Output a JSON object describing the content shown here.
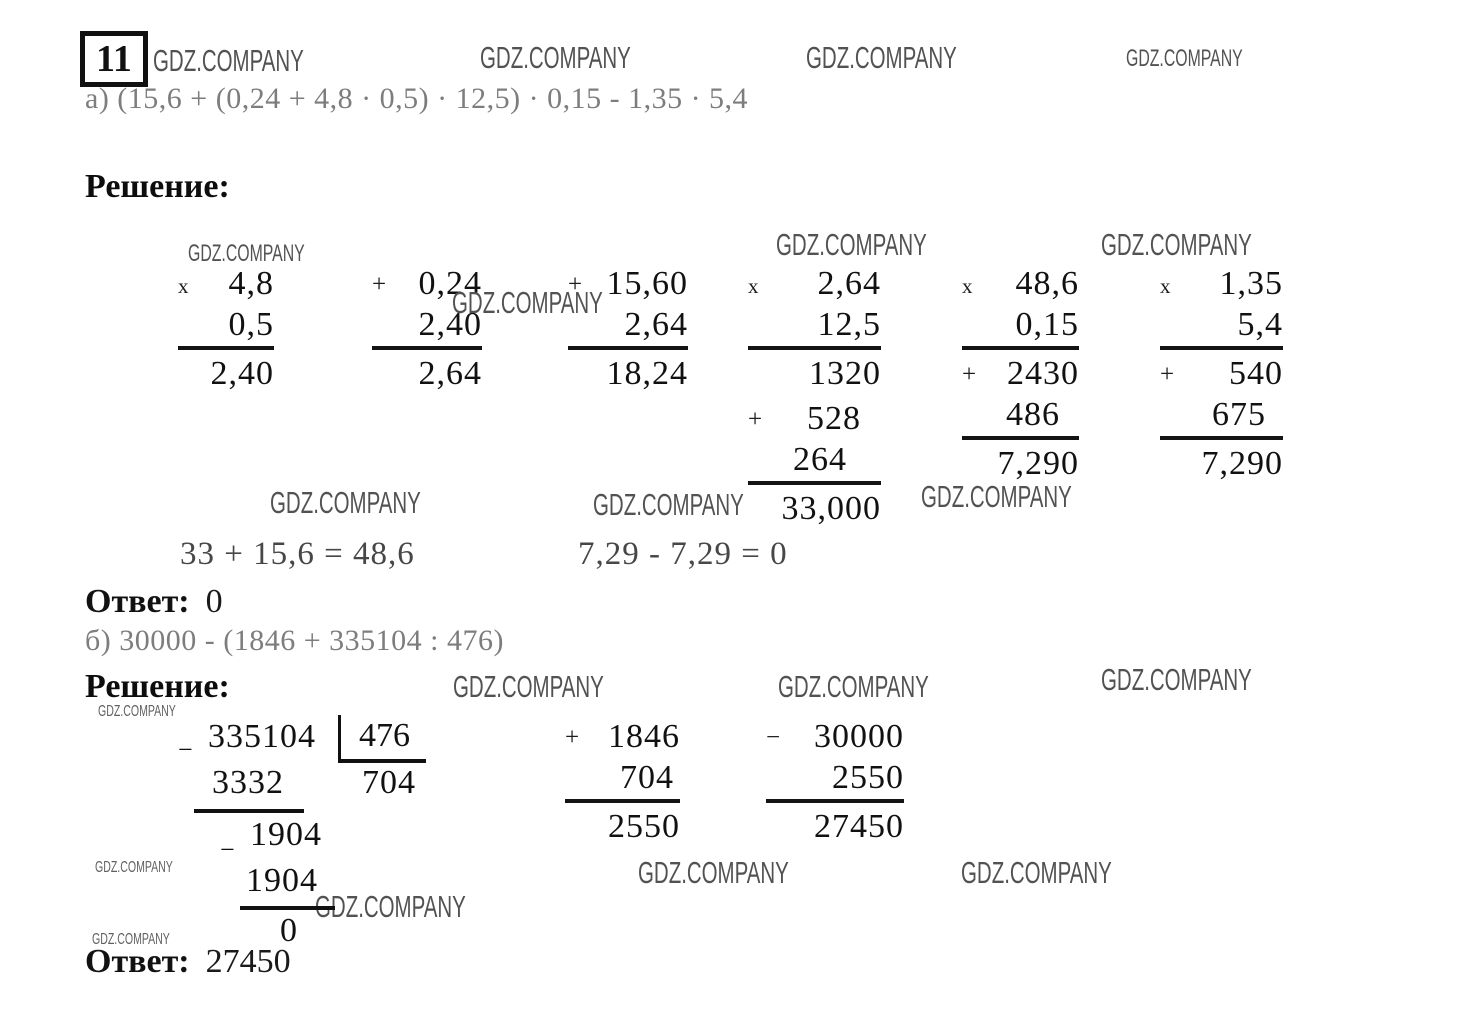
{
  "watermark": "GDZ.COMPANY",
  "header": {
    "problem_number": "11"
  },
  "part_a": {
    "expression": "а) (15,6 + (0,24 + 4,8 · 0,5) · 12,5) · 0,15 - 1,35 · 5,4",
    "solution_label": "Решение:",
    "equation_left": "33 + 15,6 = 48,6",
    "equation_right": "7,29 - 7,29 = 0",
    "answer_label": "Ответ:",
    "answer": "0"
  },
  "part_b": {
    "expression": "б) 30000 - (1846 + 335104 : 476)",
    "solution_label": "Решение:",
    "answer_label": "Ответ:",
    "answer": "27450"
  },
  "work_a": {
    "columns": [
      {
        "id": "a1",
        "name": "column-multiply-4-8-by-0-5",
        "rows": [
          {
            "op": "x",
            "val": "4,8"
          },
          {
            "op": "",
            "val": "0,5",
            "line": true
          },
          {
            "op": "",
            "val": "2,40"
          }
        ]
      },
      {
        "id": "a2",
        "name": "column-add-0-24-and-2-40",
        "rows": [
          {
            "op": "+",
            "val": "0,24"
          },
          {
            "op": "",
            "val": "2,40",
            "line": true
          },
          {
            "op": "",
            "val": "2,64"
          }
        ]
      },
      {
        "id": "a3",
        "name": "column-add-15-60-and-2-64",
        "rows": [
          {
            "op": "+",
            "val": "15,60"
          },
          {
            "op": "",
            "val": "2,64",
            "line": true
          },
          {
            "op": "",
            "val": "18,24"
          }
        ]
      },
      {
        "id": "a4",
        "name": "column-multiply-2-64-by-12-5",
        "rows": [
          {
            "op": "x",
            "val": "2,64"
          },
          {
            "op": "",
            "val": "12,5",
            "line": true
          },
          {
            "op": "",
            "val": "1320"
          },
          {
            "op": "+",
            "val": "528",
            "pad": 20
          },
          {
            "op": "",
            "val": "264",
            "pad": 34,
            "line": true
          },
          {
            "op": "",
            "val": "33,000"
          }
        ]
      },
      {
        "id": "a5",
        "name": "column-multiply-48-6-by-0-15",
        "rows": [
          {
            "op": "x",
            "val": "48,6"
          },
          {
            "op": "",
            "val": "0,15",
            "line": true
          },
          {
            "op": "+",
            "val": "2430"
          },
          {
            "op": "",
            "val": "486",
            "pad": 19,
            "line": true
          },
          {
            "op": "",
            "val": "7,290"
          }
        ]
      },
      {
        "id": "a6",
        "name": "column-multiply-1-35-by-5-4",
        "rows": [
          {
            "op": "x",
            "val": "1,35"
          },
          {
            "op": "",
            "val": "5,4",
            "line": true
          },
          {
            "op": "+",
            "val": "540"
          },
          {
            "op": "",
            "val": "675",
            "pad": 17,
            "line": true
          },
          {
            "op": "",
            "val": "7,290"
          }
        ]
      }
    ]
  },
  "work_b": {
    "division": {
      "minus": "−",
      "dividend": "335104",
      "divisor": "476",
      "quotient": "704",
      "sub1": "3332",
      "rem1": "1904",
      "sub2": "1904",
      "rem2": "0"
    },
    "columns": [
      {
        "id": "b1",
        "name": "column-add-1846-and-704",
        "rows": [
          {
            "op": "+",
            "val": "1846"
          },
          {
            "op": "",
            "val": "704",
            "pad": 6,
            "line": true
          },
          {
            "op": "",
            "val": "2550"
          }
        ]
      },
      {
        "id": "b2",
        "name": "column-subtract-2550-from-30000",
        "rows": [
          {
            "op": "−",
            "val": "30000"
          },
          {
            "op": "",
            "val": "2550",
            "line": true
          },
          {
            "op": "",
            "val": "27450"
          }
        ]
      }
    ]
  }
}
